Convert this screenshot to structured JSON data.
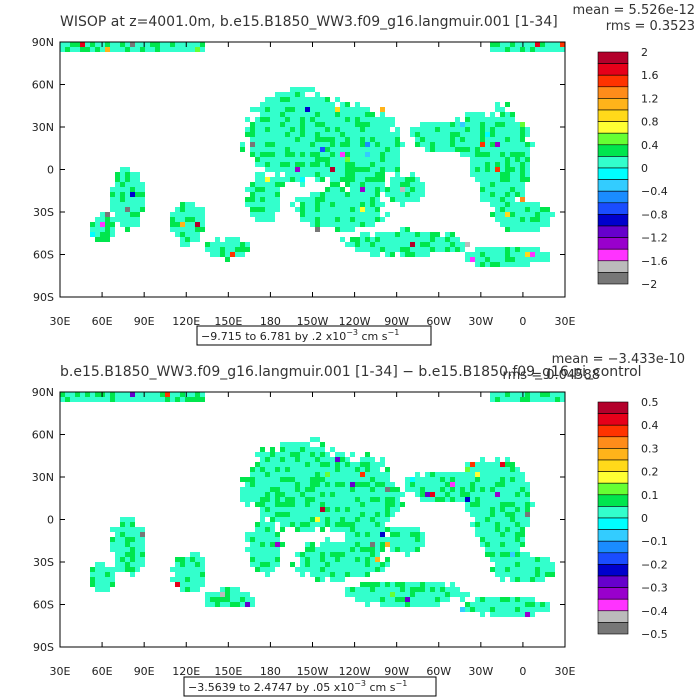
{
  "chart_data": [
    {
      "type": "heatmap",
      "title": "WISOP at z=4001.0m, b.e15.B1850_WW3.f09_g16.langmuir.001 [1-34]",
      "stats": {
        "mean": "mean = 5.526e-12",
        "rms": "rms = 0.3523"
      },
      "x_ticks": [
        "30E",
        "60E",
        "90E",
        "120E",
        "150E",
        "180",
        "150W",
        "120W",
        "90W",
        "60W",
        "30W",
        "0",
        "30E"
      ],
      "y_ticks": [
        "90N",
        "60N",
        "30N",
        "0",
        "30S",
        "60S",
        "90S"
      ],
      "range_label": "−9.715 to 6.781 by .2 x10",
      "range_exp": "−3",
      "range_units": " cm s",
      "range_units_exp": "−1",
      "colorbar_labels": [
        "2",
        "1.6",
        "1.2",
        "0.8",
        "0.4",
        "0",
        "−0.4",
        "−0.8",
        "−1.2",
        "−1.6",
        "−2"
      ]
    },
    {
      "type": "heatmap",
      "title": "b.e15.B1850_WW3.f09_g16.langmuir.001 [1-34] − b.e15.B1850.f09_g16.pi_control",
      "stats": {
        "mean": "mean = −3.433e-10",
        "rms": "rms = 0.04588"
      },
      "x_ticks": [
        "30E",
        "60E",
        "90E",
        "120E",
        "150E",
        "180",
        "150W",
        "120W",
        "90W",
        "60W",
        "30W",
        "0",
        "30E"
      ],
      "y_ticks": [
        "90N",
        "60N",
        "30N",
        "0",
        "30S",
        "60S",
        "90S"
      ],
      "range_label": "−3.5639 to 2.4747 by .05 x10",
      "range_exp": "−3",
      "range_units": " cm s",
      "range_units_exp": "−1",
      "colorbar_labels": [
        "0.5",
        "0.4",
        "0.3",
        "0.2",
        "0.1",
        "0",
        "−0.1",
        "−0.2",
        "−0.3",
        "−0.4",
        "−0.5"
      ]
    }
  ],
  "colors": {
    "palette": [
      "#b3002b",
      "#e6001a",
      "#ff3300",
      "#ff8c1a",
      "#ffb31a",
      "#ffd91a",
      "#ffff33",
      "#66ff33",
      "#00e64d",
      "#33ffcc",
      "#00ffff",
      "#33ccff",
      "#1a8cff",
      "#1a4dff",
      "#0000cc",
      "#6600cc",
      "#9900cc",
      "#ff33ff",
      "#bbbbbb",
      "#777777"
    ],
    "land": "#ffffff",
    "ocean_main": "#33ffcc",
    "ocean_alt": "#00e64d"
  }
}
